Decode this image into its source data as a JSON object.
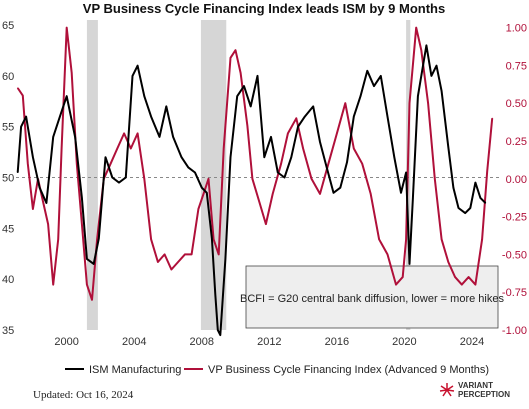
{
  "chart_data": {
    "type": "line",
    "title": "VP Business Cycle Financing Index leads ISM by 9 Months",
    "x_range": [
      1997.0,
      2025.6
    ],
    "left_axis": {
      "ylim": [
        35,
        65.5
      ],
      "ticks": [
        "35",
        "40",
        "45",
        "50",
        "55",
        "60",
        "65"
      ]
    },
    "right_axis": {
      "ylim": [
        -1.0,
        1.05
      ],
      "ticks": [
        "-1.00",
        "-0.75",
        "-0.50",
        "-0.25",
        "0.00",
        "0.25",
        "0.50",
        "0.75",
        "1.00"
      ]
    },
    "x_ticks": [
      "2000",
      "2004",
      "2008",
      "2012",
      "2016",
      "2020",
      "2024"
    ],
    "reference_line": {
      "axis": "left",
      "value": 50
    },
    "recessions": [
      [
        2001.2,
        2001.85
      ],
      [
        2007.95,
        2009.45
      ],
      [
        2020.1,
        2020.35
      ]
    ],
    "annotation": "BCFI = G20 central bank diffusion, lower = more hikes",
    "series": [
      {
        "name": "ISM Manufacturing",
        "axis": "left",
        "color": "#000000",
        "x": [
          1997.1,
          1997.3,
          1997.6,
          1998.0,
          1998.4,
          1998.8,
          1999.2,
          1999.6,
          2000.0,
          2000.5,
          2000.9,
          2001.2,
          2001.6,
          2001.9,
          2002.3,
          2002.7,
          2003.1,
          2003.5,
          2003.9,
          2004.2,
          2004.6,
          2005.0,
          2005.5,
          2005.9,
          2006.3,
          2006.8,
          2007.2,
          2007.6,
          2008.0,
          2008.3,
          2008.6,
          2008.8,
          2008.95,
          2009.1,
          2009.4,
          2009.7,
          2010.1,
          2010.5,
          2010.9,
          2011.3,
          2011.7,
          2012.1,
          2012.5,
          2012.9,
          2013.3,
          2013.7,
          2014.1,
          2014.6,
          2015.0,
          2015.4,
          2015.8,
          2016.2,
          2016.6,
          2017.0,
          2017.4,
          2017.8,
          2018.2,
          2018.6,
          2019.0,
          2019.4,
          2019.8,
          2020.1,
          2020.3,
          2020.5,
          2020.8,
          2021.1,
          2021.3,
          2021.6,
          2021.9,
          2022.2,
          2022.6,
          2022.9,
          2023.2,
          2023.6,
          2023.9,
          2024.2,
          2024.5,
          2024.8
        ],
        "values": [
          50.5,
          55.0,
          56.0,
          52.0,
          49.0,
          47.5,
          54.0,
          56.0,
          58.0,
          54.0,
          48.0,
          42.0,
          41.5,
          44.0,
          52.0,
          50.0,
          49.5,
          50.0,
          60.0,
          61.0,
          58.0,
          56.0,
          54.0,
          57.0,
          54.0,
          52.0,
          51.0,
          50.5,
          49.0,
          48.5,
          44.0,
          38.5,
          35.0,
          34.5,
          42.0,
          52.0,
          58.0,
          59.0,
          57.0,
          60.0,
          52.0,
          54.0,
          50.5,
          50.0,
          52.0,
          55.0,
          56.0,
          57.0,
          53.5,
          51.0,
          48.5,
          49.0,
          51.5,
          56.0,
          58.0,
          60.5,
          59.0,
          60.0,
          56.0,
          52.0,
          48.5,
          50.5,
          41.5,
          48.0,
          58.0,
          61.0,
          63.0,
          60.0,
          61.0,
          58.5,
          53.0,
          49.0,
          47.0,
          46.5,
          47.0,
          49.5,
          48.0,
          47.5
        ]
      },
      {
        "name": "VP Business Cycle Financing Index (Advanced 9 Months)",
        "axis": "right",
        "color": "#b0103a",
        "x": [
          1997.1,
          1997.4,
          1997.7,
          1998.0,
          1998.3,
          1998.6,
          1998.9,
          1999.2,
          1999.5,
          1999.7,
          2000.0,
          2000.3,
          2000.6,
          2000.9,
          2001.2,
          2001.5,
          2001.8,
          2002.2,
          2002.6,
          2003.0,
          2003.4,
          2003.8,
          2004.2,
          2004.6,
          2005.0,
          2005.4,
          2005.8,
          2006.2,
          2006.6,
          2007.0,
          2007.4,
          2007.8,
          2008.1,
          2008.4,
          2008.7,
          2009.0,
          2009.3,
          2009.7,
          2010.0,
          2010.3,
          2010.7,
          2011.0,
          2011.4,
          2011.8,
          2012.2,
          2012.7,
          2013.1,
          2013.6,
          2014.0,
          2014.5,
          2015.0,
          2015.5,
          2016.0,
          2016.5,
          2017.0,
          2017.5,
          2018.0,
          2018.5,
          2019.0,
          2019.5,
          2019.9,
          2020.1,
          2020.3,
          2020.7,
          2021.0,
          2021.4,
          2021.8,
          2022.2,
          2022.6,
          2023.0,
          2023.4,
          2023.8,
          2024.2,
          2024.6,
          2024.9,
          2025.2
        ],
        "values": [
          0.6,
          0.55,
          0.1,
          -0.2,
          0.0,
          -0.15,
          -0.3,
          -0.7,
          -0.4,
          0.2,
          1.0,
          0.7,
          0.1,
          -0.3,
          -0.7,
          -0.8,
          -0.4,
          0.0,
          0.1,
          0.2,
          0.3,
          0.2,
          0.3,
          0.0,
          -0.4,
          -0.55,
          -0.5,
          -0.6,
          -0.55,
          -0.5,
          -0.5,
          -0.2,
          -0.1,
          0.0,
          -0.4,
          -0.5,
          0.2,
          0.8,
          0.85,
          0.7,
          0.35,
          0.0,
          -0.15,
          -0.3,
          -0.1,
          0.1,
          0.3,
          0.4,
          0.2,
          0.0,
          -0.1,
          0.1,
          0.3,
          0.5,
          0.2,
          0.1,
          -0.1,
          -0.4,
          -0.5,
          -0.7,
          -0.65,
          -0.4,
          0.5,
          1.0,
          0.85,
          0.5,
          0.0,
          -0.4,
          -0.55,
          -0.65,
          -0.7,
          -0.65,
          -0.7,
          -0.4,
          0.05,
          0.4
        ]
      }
    ],
    "legend_position": "bottom"
  },
  "footer": {
    "updated": "Updated: Oct 16, 2024",
    "brand_line1": "VARIANT",
    "brand_line2": "PERCEPTION"
  }
}
